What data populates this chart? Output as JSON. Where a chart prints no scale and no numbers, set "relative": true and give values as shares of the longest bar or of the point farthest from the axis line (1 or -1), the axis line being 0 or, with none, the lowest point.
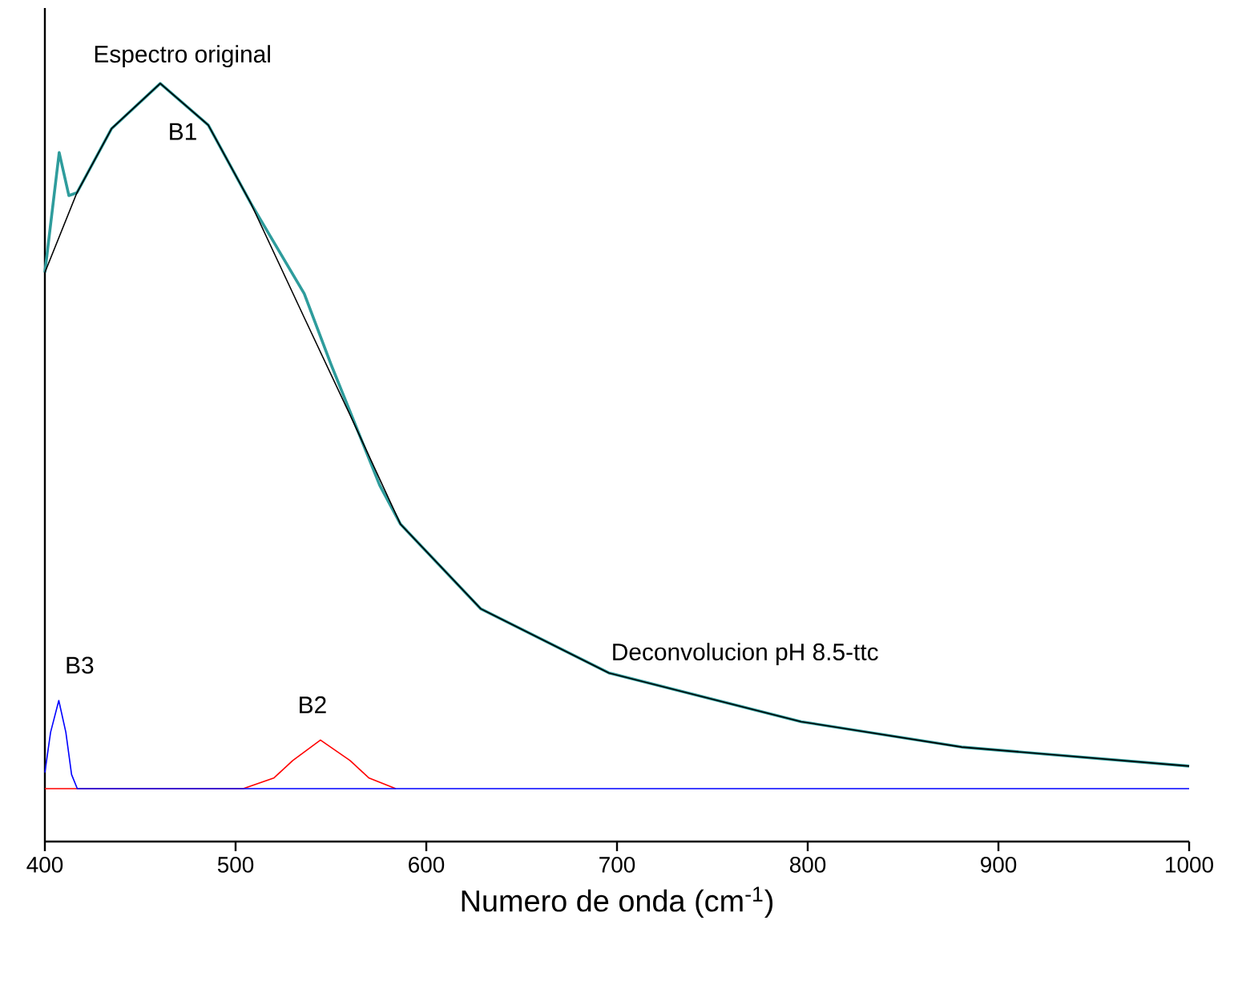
{
  "chart_data": {
    "type": "line",
    "relative": true,
    "xlabel": "Numero de onda (cm$^{-1}$)",
    "tick_labels": "x",
    "xlim": [
      400,
      1000
    ],
    "xticks": [
      400,
      500,
      600,
      700,
      800,
      900,
      1000
    ],
    "annotations": [
      "Deconvolucion pH 8.5-ttc"
    ],
    "series": [
      {
        "name": "Espectro original",
        "color": "#2e9c9c",
        "x": [
          400,
          407.5,
          412.6,
          416.8,
          435,
          460.5,
          485.7,
          508,
          536,
          550,
          575.6,
          586.5,
          628.6,
          695.8,
          796.6,
          880.7,
          1000
        ],
        "values": [
          0.732,
          0.902,
          0.841,
          0.845,
          0.936,
          1.0,
          0.941,
          0.83,
          0.702,
          0.602,
          0.43,
          0.375,
          0.255,
          0.164,
          0.095,
          0.059,
          0.032
        ]
      },
      {
        "name": "B1",
        "color": "#000000",
        "x": [
          400,
          416.8,
          435,
          460.5,
          485.7,
          508,
          536,
          560,
          586.5,
          628.6,
          695.8,
          796.6,
          880.7,
          1000
        ],
        "values": [
          0.732,
          0.845,
          0.936,
          1.0,
          0.941,
          0.83,
          0.668,
          0.53,
          0.375,
          0.255,
          0.164,
          0.095,
          0.059,
          0.032
        ]
      },
      {
        "name": "B2",
        "color": "#ff0000",
        "x": [
          400,
          504,
          520,
          530,
          544.5,
          560,
          570,
          584
        ],
        "values": [
          0,
          0,
          0.015,
          0.04,
          0.069,
          0.04,
          0.015,
          0
        ]
      },
      {
        "name": "B3",
        "color": "#0000ff",
        "x": [
          400,
          403,
          407.3,
          411,
          414,
          417,
          1000
        ],
        "values": [
          0.023,
          0.08,
          0.125,
          0.08,
          0.02,
          0,
          0
        ]
      }
    ]
  }
}
